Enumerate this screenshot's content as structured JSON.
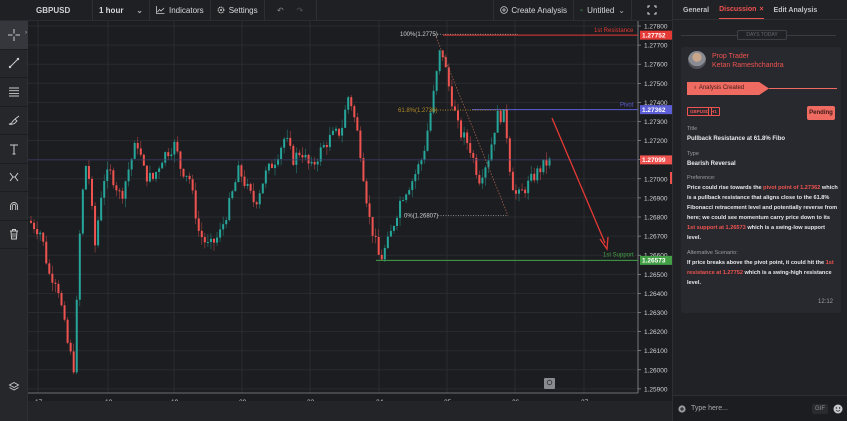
{
  "toolbar": {
    "symbol": "GBPUSD",
    "interval": "1 hour",
    "indicators_label": "Indicators",
    "settings_label": "Settings",
    "create_analysis_label": "Create Analysis",
    "layout_name": "Untitled"
  },
  "left_tools": [
    {
      "name": "crosshair-icon"
    },
    {
      "name": "trendline-icon"
    },
    {
      "name": "horizontal-lines-icon"
    },
    {
      "name": "brush-icon"
    },
    {
      "name": "text-icon"
    },
    {
      "name": "pattern-icon"
    },
    {
      "name": "magnet-icon"
    },
    {
      "name": "trash-icon"
    }
  ],
  "chart": {
    "price_axis": [
      "1.27800",
      "1.27700",
      "1.27600",
      "1.27500",
      "1.27400",
      "1.27300",
      "1.27200",
      "1.27100",
      "1.27000",
      "1.26900",
      "1.26800",
      "1.26700",
      "1.26600",
      "1.26500",
      "1.26400",
      "1.26300",
      "1.26200",
      "1.26100",
      "1.26000",
      "1.25900"
    ],
    "time_axis": [
      "17",
      "18",
      "19",
      "20",
      "23",
      "24",
      "25",
      "26",
      "27"
    ],
    "price_tags": {
      "resistance": "1.27752",
      "pivot": "1.27362",
      "current": "1.27099",
      "support": "1.26573"
    },
    "levels": {
      "resistance_label": "1st Resistance",
      "pivot_label": "Pivot",
      "support_label": "1st Support"
    },
    "fib": {
      "f100": "100%(1.2775)",
      "f618": "61.8%(1.2736)",
      "f0": "0%(1.26807)"
    },
    "colors": {
      "up": "#26a69a",
      "down": "#ef5350",
      "resistance": "#e53935",
      "pivot": "#5c5fd6",
      "support": "#43a047",
      "fib": "#b08a2a"
    }
  },
  "right_panel": {
    "tabs": [
      {
        "label": "General"
      },
      {
        "label": "Discussion",
        "active": true
      },
      {
        "label": "Edit Analysis"
      }
    ],
    "day_separator": "DAYS TODAY",
    "author_role": "Prop Trader",
    "author_name": "Ketan Rameshchandra",
    "event": "Analysis Created",
    "chips": [
      "GBPUSD",
      "H1"
    ],
    "status": "Pending",
    "title_label": "Title",
    "title_value": "Pullback Resistance at 61.8% Fibo",
    "type_label": "Type",
    "type_value": "Bearish Reversal",
    "preference_label": "Preference:",
    "preference_parts": [
      "Price could rise towards the ",
      "pivot point of 1.27362",
      " which is a pullback resistance that aligns close to the 61.8% Fibonacci retracement level and potentially reverse from here; we could see momentum carry price down to its ",
      "1st support at 1.26573",
      " which is a swing-low support level."
    ],
    "alt_label": "Alternative Scenario:",
    "alt_parts": [
      "If price breaks above the pivot point, it could hit the ",
      "1st resistance at 1.27752",
      " which is a swing-high resistance level."
    ],
    "time": "12:12",
    "composer_placeholder": "Type here...",
    "gif_label": "GIF"
  }
}
